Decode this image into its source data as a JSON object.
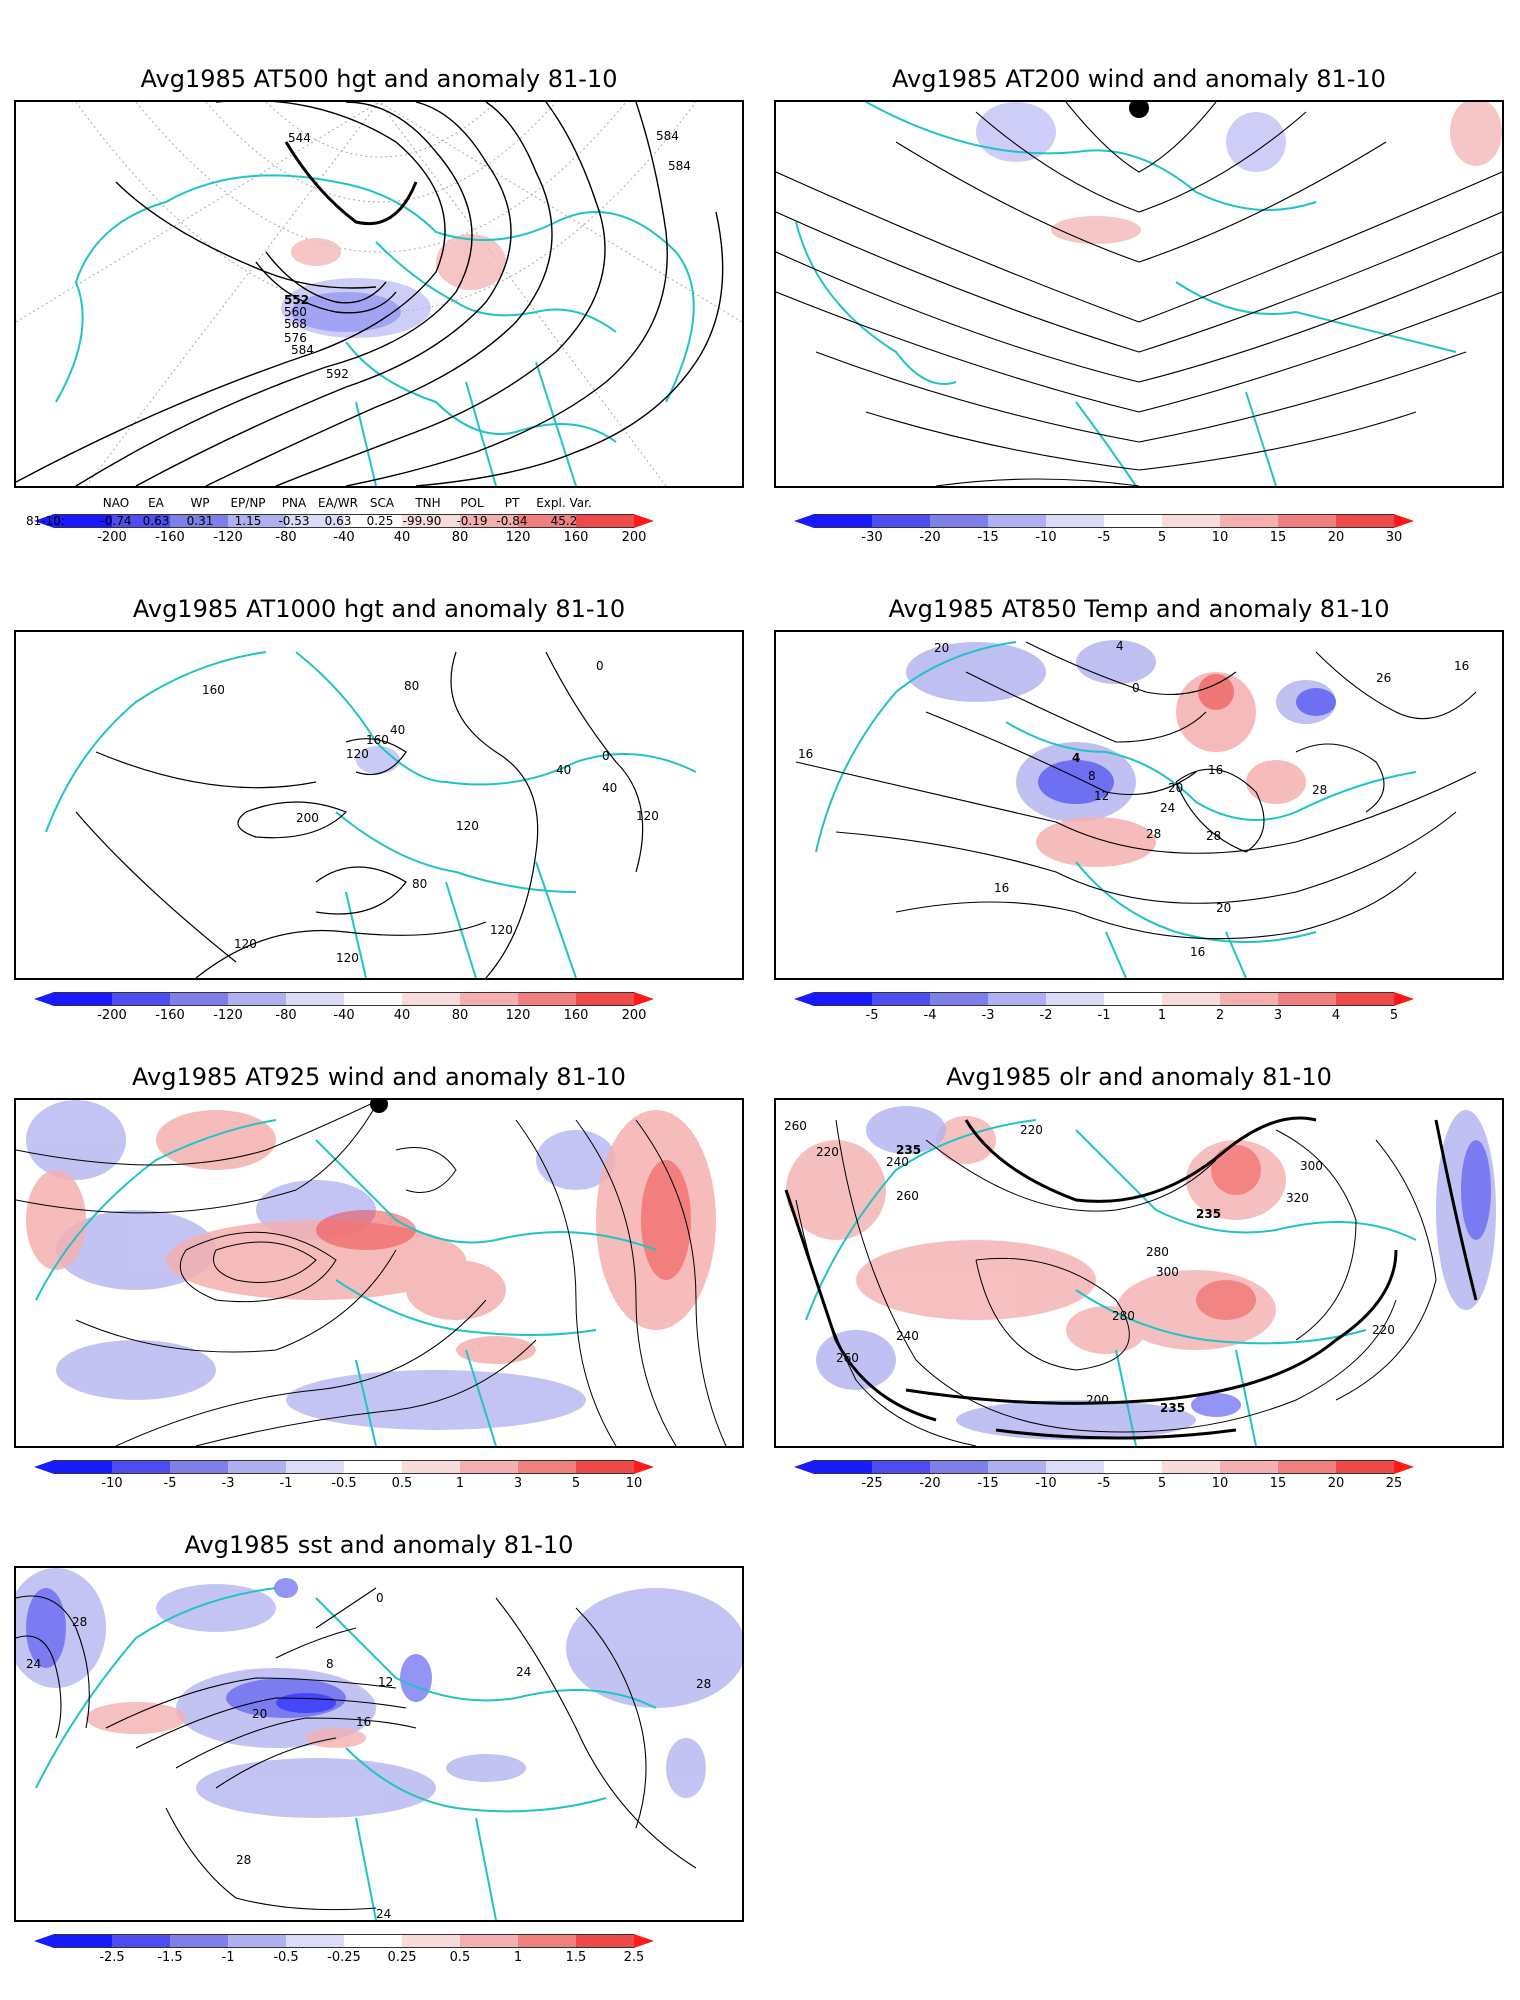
{
  "panels": {
    "p500": {
      "title": "Avg1985 AT500 hgt and anomaly 81-10",
      "colorbar": [
        "-200",
        "-160",
        "-120",
        "-80",
        "-40",
        "40",
        "80",
        "120",
        "160",
        "200"
      ],
      "contour_labels": [
        "544",
        "552",
        "560",
        "568",
        "576",
        "584",
        "592",
        "584",
        "584"
      ]
    },
    "p200": {
      "title": "Avg1985 AT200 wind and anomaly 81-10",
      "colorbar": [
        "-30",
        "-20",
        "-15",
        "-10",
        "-5",
        "5",
        "10",
        "15",
        "20",
        "30"
      ]
    },
    "p1000": {
      "title": "Avg1985 AT1000 hgt and anomaly 81-10",
      "colorbar": [
        "-200",
        "-160",
        "-120",
        "-80",
        "-40",
        "40",
        "80",
        "120",
        "160",
        "200"
      ],
      "contour_labels": [
        "160",
        "120",
        "80",
        "40",
        "0",
        "200",
        "120",
        "80",
        "120",
        "40",
        "0",
        "40",
        "120",
        "120",
        "160",
        "120"
      ]
    },
    "p850": {
      "title": "Avg1985 AT850 Temp and anomaly 81-10",
      "colorbar": [
        "-5",
        "-4",
        "-3",
        "-2",
        "-1",
        "1",
        "2",
        "3",
        "4",
        "5"
      ],
      "contour_labels": [
        "20",
        "4",
        "0",
        "4",
        "8",
        "12",
        "16",
        "20",
        "24",
        "28",
        "28",
        "28",
        "16",
        "16",
        "20",
        "16",
        "16",
        "26"
      ]
    },
    "p925": {
      "title": "Avg1985 AT925 wind and anomaly 81-10",
      "colorbar": [
        "-10",
        "-5",
        "-3",
        "-1",
        "-0.5",
        "0.5",
        "1",
        "3",
        "5",
        "10"
      ]
    },
    "polr": {
      "title": "Avg1985 olr and anomaly 81-10",
      "colorbar": [
        "-25",
        "-20",
        "-15",
        "-10",
        "-5",
        "5",
        "10",
        "15",
        "20",
        "25"
      ],
      "contour_labels": [
        "260",
        "220",
        "240",
        "235",
        "220",
        "260",
        "280",
        "300",
        "320",
        "300",
        "235",
        "280",
        "260",
        "240",
        "220",
        "200",
        "235"
      ]
    },
    "psst": {
      "title": "Avg1985 sst and anomaly 81-10",
      "colorbar": [
        "-2.5",
        "-1.5",
        "-1",
        "-0.5",
        "-0.25",
        "0.25",
        "0.5",
        "1",
        "1.5",
        "2.5"
      ],
      "contour_labels": [
        "28",
        "24",
        "20",
        "16",
        "12",
        "8",
        "0",
        "24",
        "28",
        "28",
        "24"
      ]
    }
  },
  "indices": {
    "headers": [
      "NAO",
      "EA",
      "WP",
      "EP/NP",
      "PNA",
      "EA/WR",
      "SCA",
      "TNH",
      "POL",
      "PT",
      "Expl. Var."
    ],
    "row_label": "81-10:",
    "values": [
      "-0.74",
      "0.63",
      "0.31",
      "1.15",
      "-0.53",
      "0.63",
      "0.25",
      "-99.90",
      "-0.19",
      "-0.84",
      "45.2"
    ]
  },
  "colors": {
    "ocean_bg": "#ffffff",
    "coastline": "#1fc4c4",
    "contour": "#000000",
    "grid": "#999999",
    "scale": [
      "#1a1aff",
      "#4d4df0",
      "#7f7fe8",
      "#b0b0f0",
      "#dcdcf8",
      "#ffffff",
      "#f8dcdc",
      "#f4b0b0",
      "#f07f7f",
      "#ee4a4a",
      "#ff1a1a"
    ]
  }
}
